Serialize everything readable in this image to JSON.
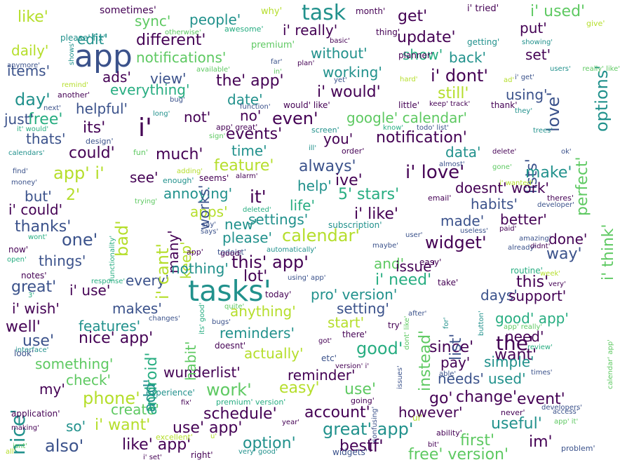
{
  "palette": {
    "c1": "#440154",
    "c2": "#3b528b",
    "c3": "#21918c",
    "c4": "#27ad81",
    "c5": "#5ec962",
    "c6": "#b5de2b",
    "c7": "#fde725"
  },
  "words": [
    "app",
    "tasks'",
    "task",
    "the'",
    "calendar'",
    "this' app'",
    "widget'",
    "i' love'",
    "google' calendar'",
    "it'",
    "i'",
    "notification'",
    "lists'",
    "like'",
    "the' app'",
    "i' really'",
    "i' used'",
    "get'",
    "update'",
    "put'",
    "different'",
    "notifications'",
    "without'",
    "back'",
    "set'",
    "working'",
    "i' dont'",
    "still'",
    "using'",
    "everything'",
    "i' would'",
    "date'",
    "helpful'",
    "not'",
    "no'",
    "even'",
    "free'",
    "its'",
    "thats'",
    "events'",
    "you'",
    "could'",
    "much'",
    "time'",
    "data'",
    "always'",
    "feature'",
    "make'",
    "app' i'",
    "see'",
    "annoying'",
    "help'",
    "ive'",
    "doesnt' work'",
    "but'",
    "5' stars'",
    "life'",
    "habits'",
    "i' could'",
    "apps'",
    "settings'",
    "i' like'",
    "made'",
    "better'",
    "thanks'",
    "new'",
    "one'",
    "please'",
    "done'",
    "many'",
    "works'",
    "things'",
    "keep'",
    "nothing'",
    "and'",
    "issue'",
    "way'",
    "great'",
    "every'",
    "lot'",
    "i' need'",
    "this'",
    "i' use'",
    "pro' version'",
    "days'",
    "support'",
    "i' wish'",
    "makes'",
    "anything'",
    "setting'",
    "good' app'",
    "well'",
    "features'",
    "reminders'",
    "start'",
    "need'",
    "use'",
    "nice' app'",
    "actually'",
    "good'",
    "since'",
    "want'",
    "something'",
    "pay'",
    "simple'",
    "check'",
    "wunderlist'",
    "reminder'",
    "needs'",
    "used'",
    "my'",
    "work'",
    "easy'",
    "use'",
    "change'",
    "go'",
    "event'",
    "phone'",
    "create'",
    "schedule'",
    "account'",
    "however'",
    "so'",
    "i' want'",
    "use' app'",
    "great' app'",
    "useful'",
    "also'",
    "like' app'",
    "option'",
    "best'",
    "if'",
    "first'",
    "im'",
    "free' version'",
    "love'",
    "options'",
    "i' think'",
    "perfect'",
    "list'",
    "instead'",
    "nice'",
    "android'",
    "habit'",
    "add'",
    "i' cant'",
    "bad'",
    "day'",
    "just'",
    "items'",
    "daily'",
    "edit'",
    "sync'",
    "people'",
    "show'",
    "ads'",
    "view'",
    "sometimes'",
    "why'",
    "month'",
    "i' tried'",
    "give'",
    "thing'",
    "please' fix'",
    "otherwise'",
    "awesome'",
    "premium'",
    "basic'",
    "far'",
    "plan'",
    "getting'",
    "showing'",
    "planner'",
    "anymore'",
    "shows'",
    "available'",
    "in'",
    "users'",
    "really' like'",
    "ad'",
    "i' get'",
    "remind'",
    "hard'",
    "yet'",
    "another'",
    "bug'",
    "function'",
    "would' like'",
    "little'",
    "keep' track'",
    "thank'",
    "next'",
    "long'",
    "they'",
    "it' would'",
    "app' great'",
    "screen'",
    "know'",
    "todo' list'",
    "trees'",
    "design'",
    "sign'",
    "ill'",
    "order'",
    "delete'",
    "ok'",
    "calendars'",
    "fun'",
    "almost'",
    "gone'",
    "find'",
    "adding'",
    "seems'",
    "alarm'",
    "money'",
    "enough'",
    "i' wanted'",
    "email'",
    "theres'",
    "developer'",
    "trying'",
    "2'",
    "deleted'",
    "subscription'",
    "say'",
    "says'",
    "paid'",
    "useless'",
    "wont'",
    "amazing'",
    "user'",
    "todoist'",
    "maybe'",
    "automatically'",
    "already'",
    "didnt'",
    "now'",
    "open'",
    "functionality'",
    "app'",
    "good'",
    "easy'",
    "routine'",
    "notes'",
    "using' app'",
    "response'",
    "take'",
    "week'",
    "very'",
    "3'",
    "today'",
    "quite'",
    "changes'",
    "bugs'",
    "try'",
    "after'",
    "for'",
    "button'",
    "app' really'",
    "interface'",
    "got'",
    "there'",
    "review'",
    "its' good'",
    "doesnt'",
    "look'",
    "etc'",
    "version' i'",
    "times'",
    "dont' like'",
    "able'",
    "issues'",
    "calendar' app'",
    "experience'",
    "fix'",
    "premium' version'",
    "access'",
    "application'",
    "going'",
    "ui'",
    "never'",
    "developers'",
    "making'",
    "year'",
    "confusing'",
    "app' it'",
    "ability'",
    "excellent'",
    "u'",
    "all'",
    "isnt'",
    "right'",
    "i' set'",
    "very' good'",
    "widgets'",
    "bit'",
    "problem'"
  ]
}
